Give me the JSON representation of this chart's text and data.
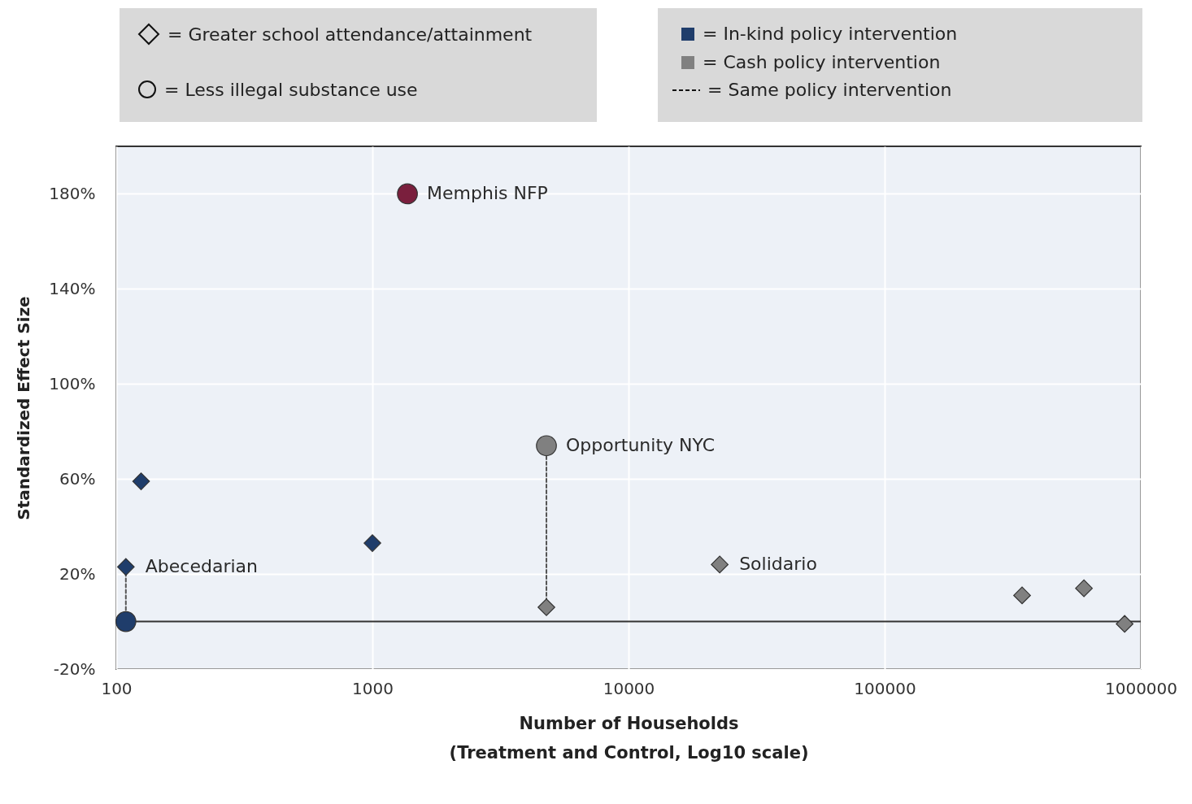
{
  "chart_data": {
    "type": "scatter",
    "xlabel": "Number of Households\n(Treatment and Control, Log10 scale)",
    "ylabel": "Standardized Effect Size",
    "log": "x",
    "xlim": [
      100,
      1000000
    ],
    "xticks": [
      100,
      1000,
      10000,
      100000,
      1000000
    ],
    "ylim": [
      -20,
      200
    ],
    "yticks": [
      {
        "value": -20,
        "label": "-20%"
      },
      {
        "value": 20,
        "label": "20%"
      },
      {
        "value": 60,
        "label": "60%"
      },
      {
        "value": 100,
        "label": "100%"
      },
      {
        "value": 140,
        "label": "140%"
      },
      {
        "value": 180,
        "label": "180%"
      }
    ],
    "grid": true,
    "ref_lines": [
      {
        "axis": "y",
        "value": 0,
        "color": "#333333"
      }
    ],
    "series": [
      {
        "type": "line",
        "line_style": "dashed",
        "color": "#555555",
        "x": [
          109,
          109
        ],
        "values": [
          0,
          23
        ]
      },
      {
        "type": "line",
        "line_style": "dashed",
        "color": "#555555",
        "x": [
          4780,
          4780
        ],
        "values": [
          6,
          74
        ]
      },
      {
        "marker": "diamond",
        "color": "#1f3d6b",
        "x": [
          109,
          125,
          1000
        ],
        "values": [
          23,
          59,
          33
        ]
      },
      {
        "marker": "circle",
        "color": "#1f3d6b",
        "x": [
          109
        ],
        "values": [
          0
        ]
      },
      {
        "marker": "circle",
        "color": "#7a1f3d",
        "x": [
          1370
        ],
        "values": [
          180
        ]
      },
      {
        "marker": "circle",
        "color": "#808080",
        "x": [
          4780
        ],
        "values": [
          74
        ]
      },
      {
        "marker": "diamond",
        "color": "#808080",
        "x": [
          4780,
          22700,
          344000,
          600000,
          865000
        ],
        "values": [
          6,
          24,
          11,
          14,
          -1
        ]
      }
    ],
    "annotations": [
      "= Greater school attendance/attainment",
      "= Less illegal substance use",
      "= In-kind policy intervention",
      "= Cash policy intervention",
      "= Same policy intervention",
      {
        "text": "Memphis NFP",
        "x": 1370,
        "y": 180
      },
      {
        "text": "Opportunity NYC",
        "x": 4780,
        "y": 74
      },
      {
        "text": "Solidario",
        "x": 22700,
        "y": 24
      },
      {
        "text": "Abecedarian",
        "x": 109,
        "y": 23
      }
    ]
  }
}
